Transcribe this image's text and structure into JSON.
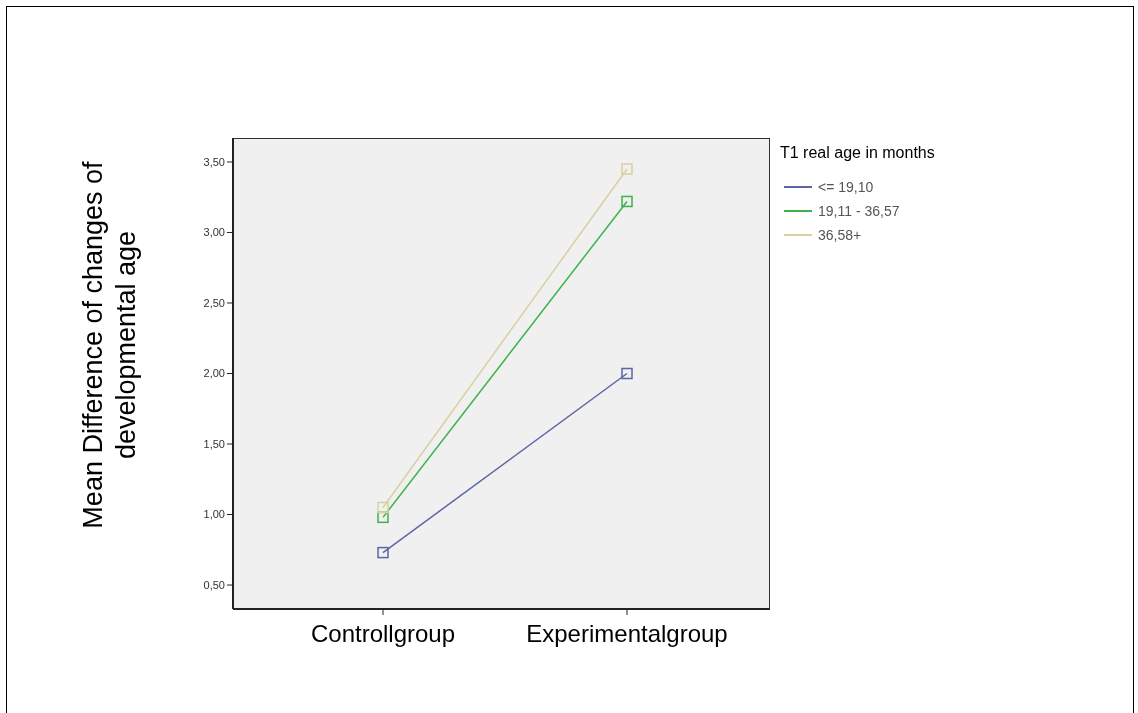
{
  "chart_data": {
    "type": "line",
    "ylabel": "Mean Difference of changes of developmental age",
    "legend_title": "T1 real age in months",
    "categories": [
      "Controllgroup",
      "Experimentalgroup"
    ],
    "series": [
      {
        "name": "<= 19,10",
        "color": "#5b65a8",
        "values": [
          0.73,
          2.0
        ]
      },
      {
        "name": "19,11 - 36,57",
        "color": "#3cb34a",
        "values": [
          0.98,
          3.22
        ]
      },
      {
        "name": "36,58+",
        "color": "#d9cfa0",
        "values": [
          1.05,
          3.45
        ]
      }
    ],
    "ylim": [
      0.33,
      3.67
    ],
    "yticks": [
      {
        "value": 0.5,
        "label": "0,50"
      },
      {
        "value": 1,
        "label": "1,00"
      },
      {
        "value": 1.5,
        "label": "1,50"
      },
      {
        "value": 2,
        "label": "2,00"
      },
      {
        "value": 2.5,
        "label": "2,50"
      },
      {
        "value": 3,
        "label": "3,00"
      },
      {
        "value": 3.5,
        "label": "3,50"
      }
    ],
    "grid": false,
    "legend": "right",
    "marker": "square",
    "line_style": "solid"
  }
}
